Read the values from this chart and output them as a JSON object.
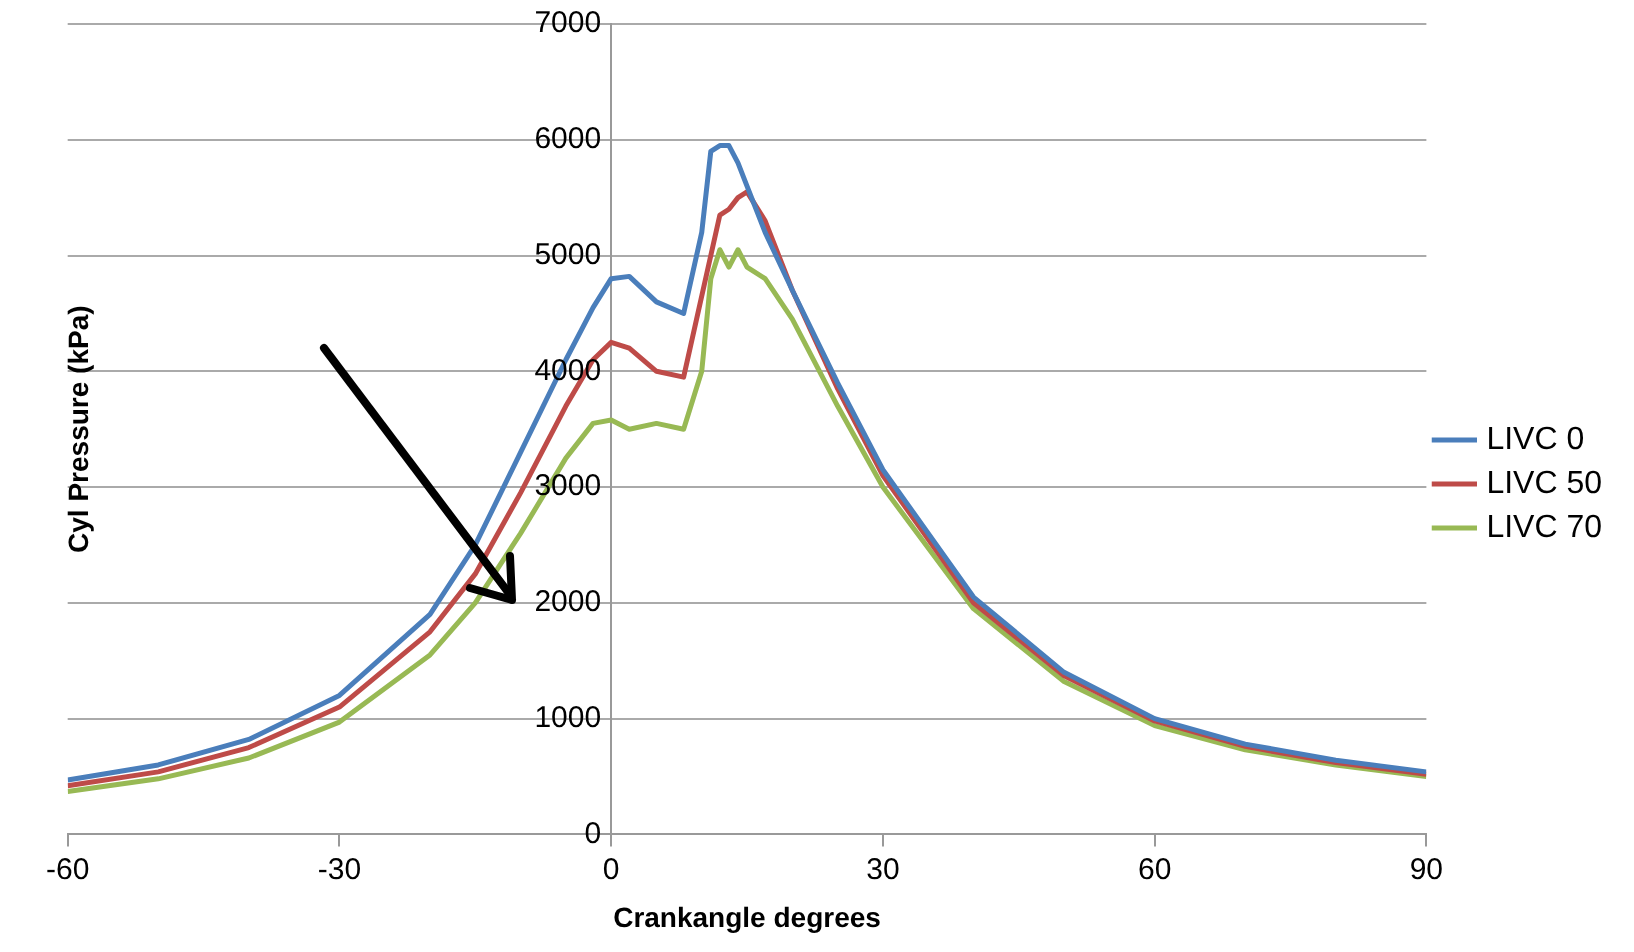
{
  "chart_data": {
    "type": "line",
    "xlabel": "Crankangle degrees",
    "ylabel": "Cyl Pressure (kPa)",
    "xlim": [
      -60,
      90
    ],
    "xticks": [
      -60,
      -30,
      0,
      30,
      60,
      90
    ],
    "ylim": [
      0,
      7000
    ],
    "yticks": [
      0,
      1000,
      2000,
      3000,
      4000,
      5000,
      6000,
      7000
    ],
    "grid": "y",
    "legend": "right",
    "marker": "none",
    "line_style": "solid",
    "series": [
      {
        "name": "LIVC 0",
        "color": "#4a7ebb",
        "x": [
          -60,
          -50,
          -40,
          -30,
          -20,
          -15,
          -10,
          -5,
          -2,
          0,
          2,
          5,
          8,
          10,
          11,
          12,
          13,
          14,
          15,
          17,
          20,
          25,
          30,
          40,
          50,
          60,
          70,
          80,
          90
        ],
        "values": [
          470,
          600,
          820,
          1200,
          1900,
          2500,
          3300,
          4100,
          4550,
          4800,
          4820,
          4600,
          4500,
          5200,
          5900,
          5950,
          5950,
          5800,
          5600,
          5200,
          4700,
          3900,
          3150,
          2050,
          1400,
          1000,
          780,
          640,
          540
        ]
      },
      {
        "name": "LIVC 50",
        "color": "#be4b48",
        "x": [
          -60,
          -50,
          -40,
          -30,
          -20,
          -15,
          -10,
          -5,
          -2,
          0,
          2,
          5,
          8,
          11,
          12,
          13,
          14,
          15,
          17,
          20,
          25,
          30,
          40,
          50,
          60,
          70,
          80,
          90
        ],
        "values": [
          420,
          540,
          750,
          1100,
          1750,
          2250,
          2950,
          3700,
          4100,
          4250,
          4200,
          4000,
          3950,
          5000,
          5350,
          5400,
          5500,
          5550,
          5300,
          4700,
          3850,
          3100,
          2000,
          1370,
          980,
          760,
          620,
          520
        ]
      },
      {
        "name": "LIVC 70",
        "color": "#98b954",
        "x": [
          -60,
          -50,
          -40,
          -30,
          -20,
          -15,
          -10,
          -5,
          -2,
          0,
          2,
          5,
          8,
          10,
          11,
          12,
          13,
          14,
          15,
          17,
          20,
          25,
          30,
          40,
          50,
          60,
          70,
          80,
          90
        ],
        "values": [
          370,
          480,
          660,
          970,
          1550,
          2000,
          2600,
          3250,
          3550,
          3580,
          3500,
          3550,
          3500,
          4000,
          4800,
          5050,
          4900,
          5050,
          4900,
          4800,
          4450,
          3700,
          3000,
          1950,
          1320,
          940,
          730,
          600,
          500
        ]
      }
    ]
  }
}
